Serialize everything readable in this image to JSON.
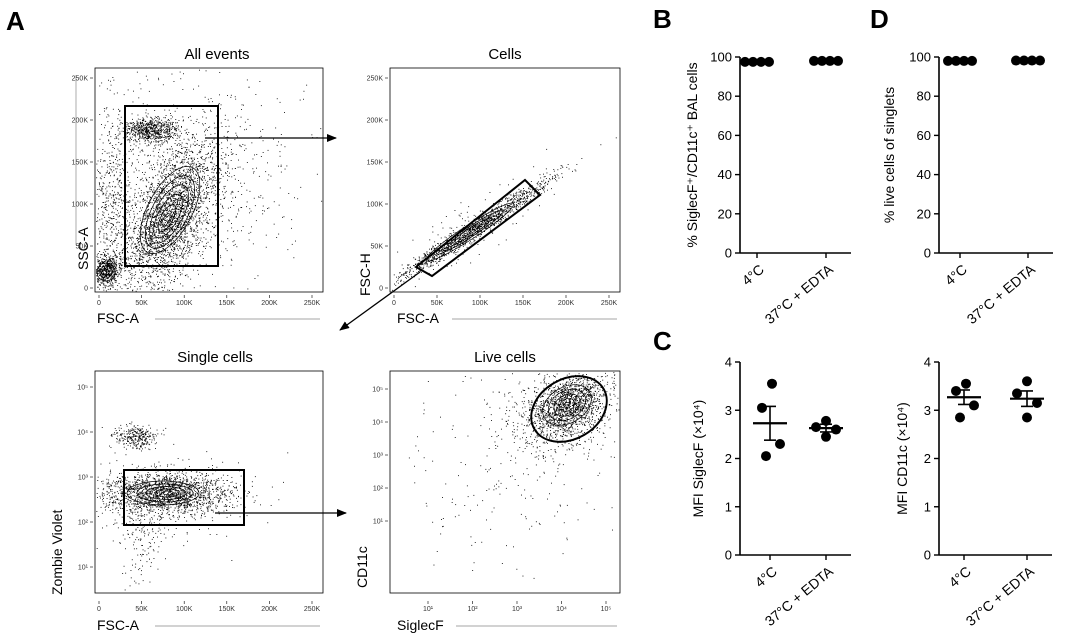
{
  "panel_letters": [
    "A",
    "B",
    "C",
    "D"
  ],
  "flow": {
    "all_events": {
      "title": "All events",
      "xlabel": "FSC-A",
      "ylabel": "SSC-A",
      "xticks": [
        "0",
        "50K",
        "100K",
        "150K",
        "200K",
        "250K"
      ],
      "yticks": [
        "0",
        "50K",
        "100K",
        "150K",
        "200K",
        "250K"
      ]
    },
    "cells": {
      "title": "Cells",
      "xlabel": "FSC-A",
      "ylabel": "FSC-H",
      "xticks": [
        "0",
        "50K",
        "100K",
        "150K",
        "200K",
        "250K"
      ],
      "yticks": [
        "0",
        "50K",
        "100K",
        "150K",
        "200K",
        "250K"
      ]
    },
    "single_cells": {
      "title": "Single cells",
      "xlabel": "FSC-A",
      "ylabel": "Zombie Violet",
      "xticks": [
        "0",
        "50K",
        "100K",
        "150K",
        "200K",
        "250K"
      ],
      "yticks": [
        "10¹",
        "10²",
        "10³",
        "10⁴",
        "10⁵"
      ]
    },
    "live_cells": {
      "title": "Live cells",
      "xlabel": "SiglecF",
      "ylabel": "CD11c",
      "xticks": [
        "10¹",
        "10²",
        "10³",
        "10⁴",
        "10⁵"
      ],
      "yticks": [
        "10¹",
        "10²",
        "10³",
        "10⁴",
        "10⁵"
      ]
    }
  },
  "chart_data": [
    {
      "type": "scatter",
      "panel": "B",
      "ylabel": "% SiglecF⁺/CD11c⁺ BAL cells",
      "ylim": [
        0,
        100
      ],
      "yticks": [
        "0",
        "20",
        "40",
        "60",
        "80",
        "100"
      ],
      "categories": [
        "4°C",
        "37°C + EDTA"
      ],
      "series": [
        {
          "name": "4°C",
          "values": [
            97.5,
            97.5,
            97.5,
            97.5
          ],
          "mean": 97.5
        },
        {
          "name": "37°C + EDTA",
          "values": [
            98,
            98,
            98,
            98
          ],
          "mean": 98
        }
      ]
    },
    {
      "type": "scatter",
      "panel": "D",
      "ylabel": "% live cells of singlets",
      "ylim": [
        0,
        100
      ],
      "yticks": [
        "0",
        "20",
        "40",
        "60",
        "80",
        "100"
      ],
      "categories": [
        "4°C",
        "37°C + EDTA"
      ],
      "series": [
        {
          "name": "4°C",
          "values": [
            98,
            98,
            98,
            98
          ],
          "mean": 98
        },
        {
          "name": "37°C + EDTA",
          "values": [
            98.2,
            98.2,
            98.2,
            98.2
          ],
          "mean": 98.2
        }
      ]
    },
    {
      "type": "scatter",
      "panel": "C",
      "ylabel": "MFI SiglecF (×10⁴)",
      "ylim": [
        0,
        4
      ],
      "yticks": [
        "0",
        "1",
        "2",
        "3",
        "4"
      ],
      "categories": [
        "4°C",
        "37°C + EDTA"
      ],
      "series": [
        {
          "name": "4°C",
          "values": [
            3.55,
            3.05,
            2.3,
            2.05
          ],
          "mean": 2.73,
          "sem": 0.35
        },
        {
          "name": "37°C + EDTA",
          "values": [
            2.78,
            2.65,
            2.6,
            2.45
          ],
          "mean": 2.63,
          "sem": 0.08
        }
      ]
    },
    {
      "type": "scatter",
      "panel": "C-right",
      "ylabel": "MFI CD11c (×10⁴)",
      "ylim": [
        0,
        4
      ],
      "yticks": [
        "0",
        "1",
        "2",
        "3",
        "4"
      ],
      "categories": [
        "4°C",
        "37°C + EDTA"
      ],
      "series": [
        {
          "name": "4°C",
          "values": [
            3.55,
            3.4,
            3.1,
            2.85
          ],
          "mean": 3.27,
          "sem": 0.15
        },
        {
          "name": "37°C + EDTA",
          "values": [
            3.6,
            3.35,
            3.15,
            2.85
          ],
          "mean": 3.24,
          "sem": 0.16
        }
      ]
    }
  ]
}
